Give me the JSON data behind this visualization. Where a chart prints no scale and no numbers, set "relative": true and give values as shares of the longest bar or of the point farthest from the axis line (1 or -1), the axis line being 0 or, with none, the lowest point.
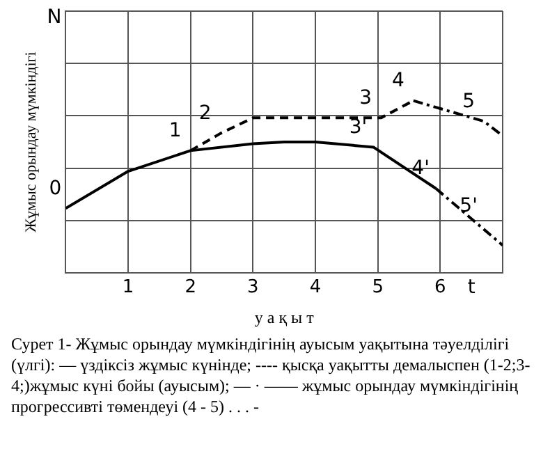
{
  "chart_data": {
    "type": "line",
    "relative": true,
    "xlabel": "у а қ ы т",
    "ylabel": "Жұмыс орындау мүмкіндігі",
    "xlim": [
      0,
      7
    ],
    "xticks": [
      1,
      2,
      3,
      4,
      5,
      6
    ],
    "grid": true,
    "legend": false,
    "series": [
      {
        "color": "#000000",
        "line_style": "solid",
        "x": [
          0,
          1,
          2,
          3,
          3.5,
          4,
          4.93,
          5.93
        ],
        "values": [
          0.375,
          0.59,
          0.71,
          0.75,
          0.76,
          0.76,
          0.73,
          0.49
        ]
      },
      {
        "color": "#000000",
        "line_style": "dashed",
        "x": [
          2,
          2.48,
          3,
          4,
          5.05,
          5.57
        ],
        "values": [
          0.71,
          0.81,
          0.9,
          0.9,
          0.9,
          1
        ]
      },
      {
        "color": "#000000",
        "line_style": "dotted",
        "x": [
          5.57,
          6.7,
          6.95
        ],
        "values": [
          1,
          0.88,
          0.81
        ]
      },
      {
        "color": "#000000",
        "line_style": "dotted",
        "x": [
          5.93,
          7
        ],
        "values": [
          0.49,
          0.16
        ]
      }
    ],
    "annotations": [
      "N",
      "t",
      {
        "text": "0",
        "x": 0,
        "y": 0.375
      },
      {
        "text": "1",
        "x": 2,
        "y": 0.71
      },
      {
        "text": "2",
        "x": 2.48,
        "y": 0.81
      },
      {
        "text": "3",
        "x": 5.05,
        "y": 0.9
      },
      {
        "text": "4",
        "x": 5.57,
        "y": 1
      },
      {
        "text": "5",
        "x": 6.7,
        "y": 0.88
      },
      {
        "text": "3'",
        "x": 4.93,
        "y": 0.73
      },
      {
        "text": "4'",
        "x": 5.93,
        "y": 0.49
      },
      {
        "text": "5'",
        "x": 6.7,
        "y": 0.27
      },
      "Сурет 1- Жұмыс орындау мүмкіндігінің ауысым уақытына тәуелділігі  (үлгі):  — үздіксіз жұмыс күнінде; ---- қысқа уақытты демалыспен (1-2;3-4;)жұмыс күні бойы (ауысым); — · —— жұмыс орындау мүмкіндігінің прогрессивті төмендеуі (4 - 5) . . .  -"
    ]
  }
}
